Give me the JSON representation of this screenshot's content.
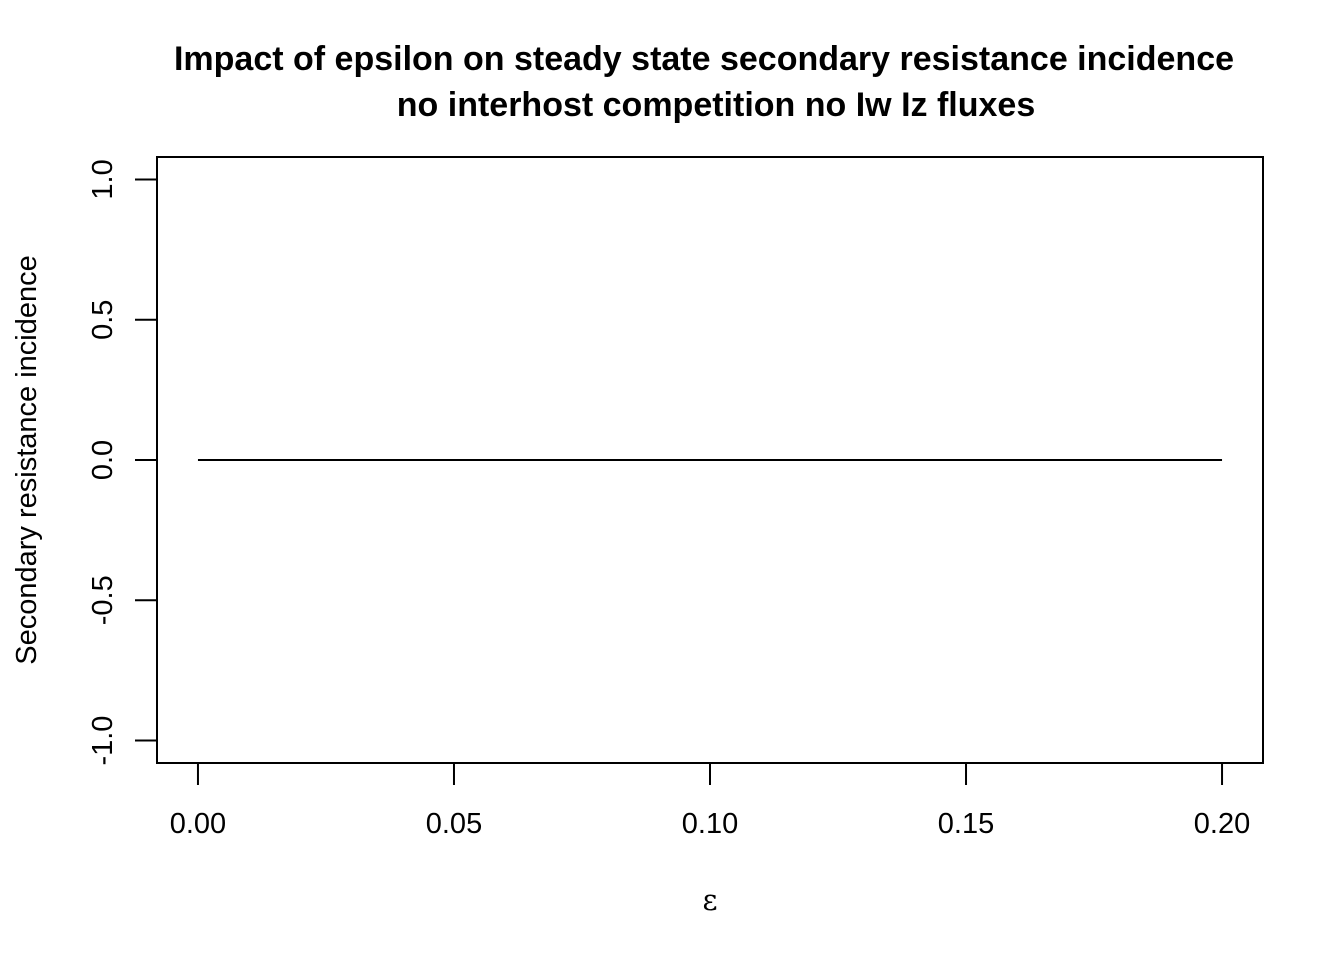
{
  "chart_data": {
    "type": "line",
    "title": "Impact of epsilon on steady state secondary resistance incidence",
    "subtitle": "no interhost competition no Iw Iz fluxes",
    "xlabel": "ε",
    "ylabel": "Secondary resistance incidence",
    "xlim": [
      -0.008,
      0.208
    ],
    "ylim": [
      -1.08,
      1.08
    ],
    "x_ticks": [
      0.0,
      0.05,
      0.1,
      0.15,
      0.2
    ],
    "x_tick_labels": [
      "0.00",
      "0.05",
      "0.10",
      "0.15",
      "0.20"
    ],
    "y_ticks": [
      -1.0,
      -0.5,
      0.0,
      0.5,
      1.0
    ],
    "y_tick_labels": [
      "-1.0",
      "-0.5",
      "0.0",
      "0.5",
      "1.0"
    ],
    "grid": false,
    "series": [
      {
        "x": [
          0.0,
          0.2
        ],
        "y": [
          0.0,
          0.0
        ],
        "color": "#000000"
      }
    ]
  }
}
